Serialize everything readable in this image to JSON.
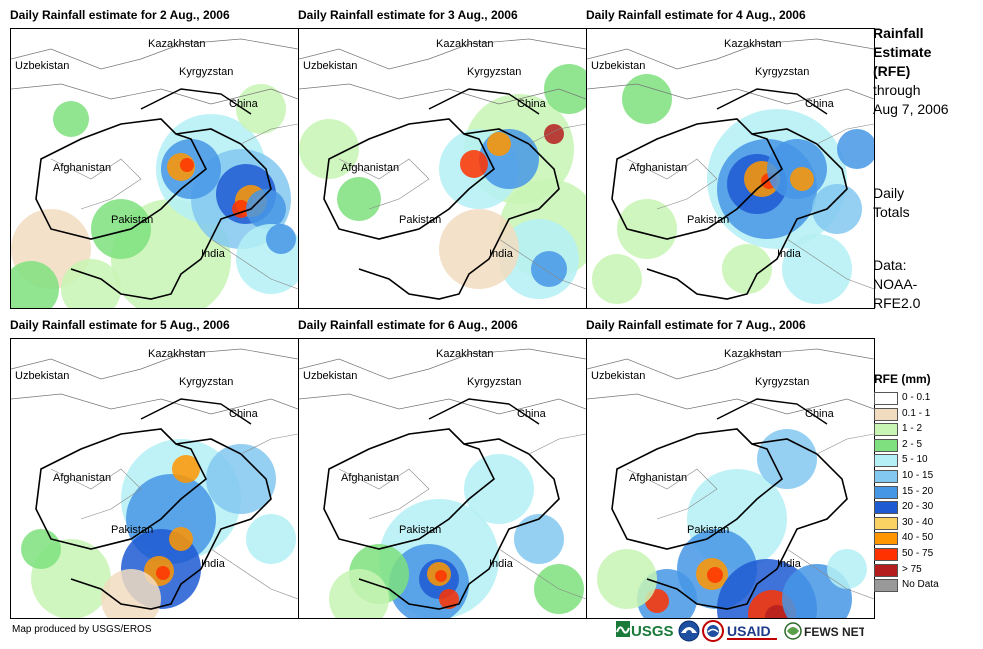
{
  "panels": [
    {
      "title": "Daily Rainfall estimate for 2 Aug., 2006"
    },
    {
      "title": "Daily Rainfall estimate for 3 Aug., 2006"
    },
    {
      "title": "Daily Rainfall estimate for 4 Aug., 2006"
    },
    {
      "title": "Daily Rainfall estimate for 5 Aug., 2006"
    },
    {
      "title": "Daily Rainfall estimate for 6 Aug., 2006"
    },
    {
      "title": "Daily Rainfall estimate for 7 Aug., 2006"
    }
  ],
  "countries": {
    "kazakhstan": "Kazakhstan",
    "uzbekistan": "Uzbekistan",
    "kyrgyzstan": "Kyrgyzstan",
    "china": "China",
    "afghanistan": "Afghanistan",
    "pakistan": "Pakistan",
    "india": "India"
  },
  "side_panel": {
    "title_lines": [
      "Rainfall",
      "Estimate",
      "(RFE)"
    ],
    "through_lines": [
      "through",
      "Aug 7, 2006"
    ],
    "totals_lines": [
      "Daily",
      "Totals"
    ],
    "data_lines": [
      "Data:",
      "NOAA-",
      "RFE2.0"
    ]
  },
  "legend": {
    "title": "RFE (mm)",
    "items": [
      {
        "label": "0 - 0.1",
        "color": "#ffffff"
      },
      {
        "label": "0.1 - 1",
        "color": "#f2dcc0"
      },
      {
        "label": "1 - 2",
        "color": "#c8f5b4"
      },
      {
        "label": "2 - 5",
        "color": "#7ee07e"
      },
      {
        "label": "5 - 10",
        "color": "#b4f0f5"
      },
      {
        "label": "10 - 15",
        "color": "#82c8f0"
      },
      {
        "label": "15 - 20",
        "color": "#4696e6"
      },
      {
        "label": "20 - 30",
        "color": "#1e5ad2"
      },
      {
        "label": "30 - 40",
        "color": "#fad264"
      },
      {
        "label": "40 - 50",
        "color": "#ff9600"
      },
      {
        "label": "50 - 75",
        "color": "#ff3200"
      },
      {
        "label": "> 75",
        "color": "#b41e1e"
      },
      {
        "label": "No Data",
        "color": "#999999"
      }
    ]
  },
  "footer": {
    "credit": "Map produced by USGS/EROS",
    "logos": [
      "USGS",
      "USAID",
      "FEWS NET"
    ]
  }
}
